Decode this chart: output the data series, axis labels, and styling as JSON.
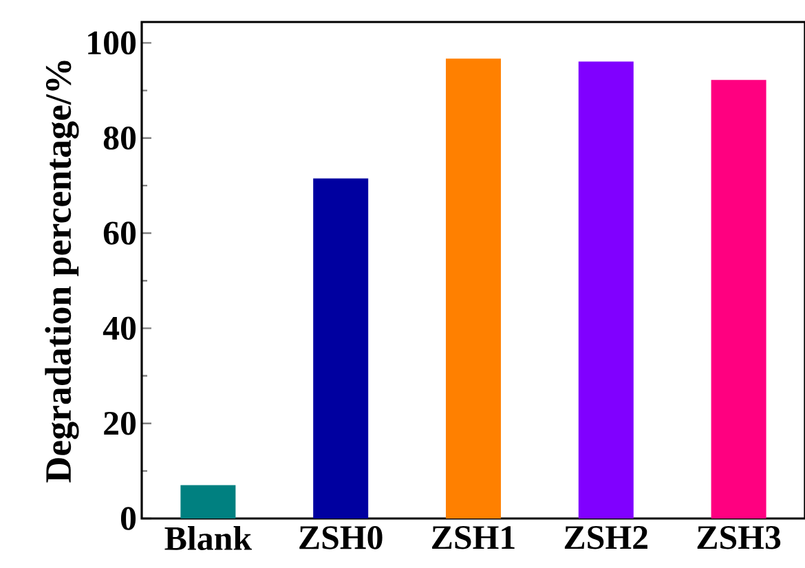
{
  "chart_data": {
    "type": "bar",
    "ylabel": "Degradation percentage/%",
    "categories": [
      "Blank",
      "ZSH0",
      "ZSH1",
      "ZSH2",
      "ZSH3"
    ],
    "values": [
      7.0,
      71.5,
      96.7,
      96.1,
      92.2
    ],
    "colors": [
      "#008080",
      "#0000a0",
      "#ff8000",
      "#8000ff",
      "#ff0080"
    ],
    "ylim": [
      0,
      104.4
    ],
    "yticks": [
      0,
      20,
      40,
      60,
      80,
      100
    ]
  }
}
